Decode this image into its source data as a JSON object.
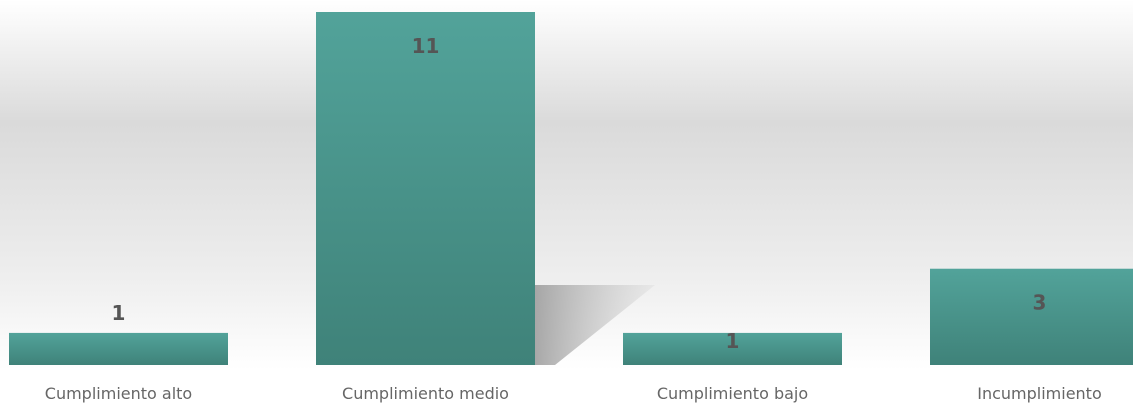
{
  "chart_data": {
    "type": "bar",
    "categories": [
      "Cumplimiento alto",
      "Cumplimiento medio",
      "Cumplimiento bajo",
      "Incumplimiento"
    ],
    "values": [
      1,
      11,
      1,
      3
    ],
    "title": "",
    "xlabel": "",
    "ylabel": "",
    "ylim": [
      0,
      11
    ],
    "grid": false,
    "legend": "none",
    "colors": {
      "bar_top": "#52a39a",
      "bar_bottom": "#3f8279",
      "background_top": "#ffffff",
      "background_mid": "#dadada",
      "background_bottom": "#ffffff",
      "value_label": "#555555",
      "category_label": "#666666"
    }
  }
}
